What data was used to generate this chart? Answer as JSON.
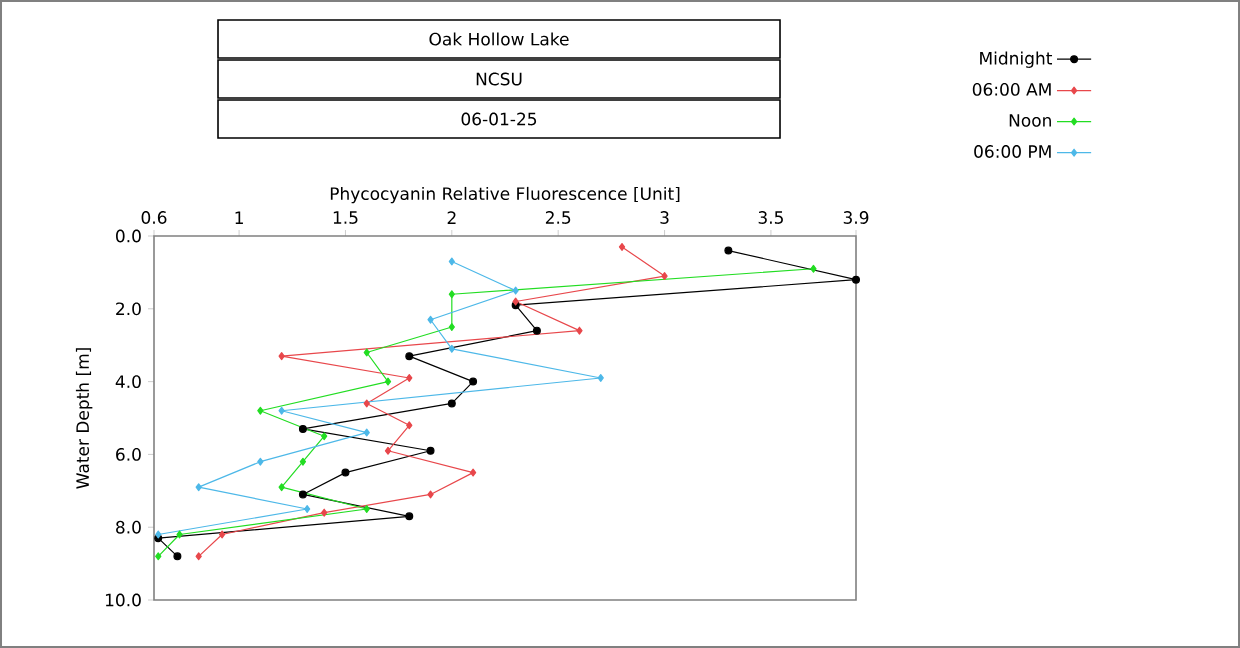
{
  "chart_data": {
    "type": "line",
    "title": "Oak Hollow Lake",
    "subtitle": "NCSU",
    "annotations": [
      "06-01-25"
    ],
    "xlabel": "Phycocyanin Relative Fluorescence [Unit]",
    "ylabel": "Water Depth [m]",
    "xlim": [
      0.6,
      3.9
    ],
    "xticks": [
      0.6,
      1,
      1.5,
      2,
      2.5,
      3,
      3.5,
      3.9
    ],
    "ylim": [
      10,
      0
    ],
    "yticks": [
      {
        "value": 0,
        "label": "0.0"
      },
      {
        "value": 2,
        "label": "2.0"
      },
      {
        "value": 4,
        "label": "4.0"
      },
      {
        "value": 6,
        "label": "6.0"
      },
      {
        "value": 8,
        "label": "8.0"
      },
      {
        "value": 10,
        "label": "10.0"
      }
    ],
    "legend": "top right",
    "grid": false,
    "line_style": "solid",
    "series": [
      {
        "name": "Midnight",
        "color": "#000000",
        "marker": "circle",
        "x": [
          3.3,
          3.9,
          2.3,
          2.4,
          1.8,
          2.1,
          2.0,
          1.3,
          1.9,
          1.5,
          1.3,
          1.8,
          0.62,
          0.71
        ],
        "values": [
          0.4,
          1.2,
          1.9,
          2.6,
          3.3,
          4.0,
          4.6,
          5.3,
          5.9,
          6.5,
          7.1,
          7.7,
          8.3,
          8.8
        ]
      },
      {
        "name": "06:00 AM",
        "color": "#e8474b",
        "marker": "diamond",
        "x": [
          2.8,
          3.0,
          2.3,
          2.6,
          1.2,
          1.8,
          1.6,
          1.8,
          1.7,
          2.1,
          1.9,
          1.4,
          0.92,
          0.81
        ],
        "values": [
          0.3,
          1.1,
          1.8,
          2.6,
          3.3,
          3.9,
          4.6,
          5.2,
          5.9,
          6.5,
          7.1,
          7.6,
          8.2,
          8.8
        ]
      },
      {
        "name": "Noon",
        "color": "#22dd22",
        "marker": "diamond",
        "x": [
          3.7,
          2.0,
          2.0,
          1.6,
          1.7,
          1.1,
          1.4,
          1.3,
          1.2,
          1.6,
          0.72,
          0.62
        ],
        "values": [
          0.9,
          1.6,
          2.5,
          3.2,
          4.0,
          4.8,
          5.5,
          6.2,
          6.9,
          7.5,
          8.2,
          8.8
        ]
      },
      {
        "name": "06:00 PM",
        "color": "#4db8e8",
        "marker": "diamond",
        "x": [
          2.0,
          2.3,
          1.9,
          2.0,
          2.7,
          1.2,
          1.6,
          1.1,
          0.81,
          1.32,
          0.62
        ],
        "values": [
          0.7,
          1.5,
          2.3,
          3.1,
          3.9,
          4.8,
          5.4,
          6.2,
          6.9,
          7.5,
          8.2
        ]
      }
    ]
  }
}
